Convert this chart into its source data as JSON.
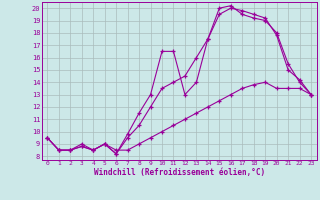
{
  "bg_color": "#cce8e8",
  "line_color": "#990099",
  "grid_color": "#aabcbc",
  "xlabel": "Windchill (Refroidissement éolien,°C)",
  "xlim_min": -0.5,
  "xlim_max": 23.5,
  "ylim_min": 7.7,
  "ylim_max": 20.5,
  "xticks": [
    0,
    1,
    2,
    3,
    4,
    5,
    6,
    7,
    8,
    9,
    10,
    11,
    12,
    13,
    14,
    15,
    16,
    17,
    18,
    19,
    20,
    21,
    22,
    23
  ],
  "yticks": [
    8,
    9,
    10,
    11,
    12,
    13,
    14,
    15,
    16,
    17,
    18,
    19,
    20
  ],
  "line1_x": [
    0,
    1,
    2,
    3,
    4,
    5,
    6,
    7,
    8,
    9,
    10,
    11,
    12,
    13,
    14,
    15,
    16,
    17,
    18,
    19,
    20,
    21,
    22,
    23
  ],
  "line1_y": [
    9.5,
    8.5,
    8.5,
    9.0,
    8.5,
    9.0,
    8.5,
    8.5,
    9.0,
    9.5,
    10.0,
    10.5,
    11.0,
    11.5,
    12.0,
    12.5,
    13.0,
    13.5,
    13.8,
    14.0,
    13.5,
    13.5,
    13.5,
    13.0
  ],
  "line2_x": [
    0,
    1,
    2,
    3,
    4,
    5,
    6,
    7,
    8,
    9,
    10,
    11,
    12,
    13,
    14,
    15,
    16,
    17,
    18,
    19,
    20,
    21,
    22,
    23
  ],
  "line2_y": [
    9.5,
    8.5,
    8.5,
    8.8,
    8.5,
    9.0,
    8.2,
    9.5,
    10.5,
    12.0,
    13.5,
    14.0,
    14.5,
    16.0,
    17.5,
    19.5,
    20.0,
    19.8,
    19.5,
    19.2,
    17.8,
    15.0,
    14.2,
    13.0
  ],
  "line3_x": [
    0,
    1,
    2,
    3,
    4,
    5,
    6,
    7,
    8,
    9,
    10,
    11,
    12,
    13,
    14,
    15,
    16,
    17,
    18,
    19,
    20,
    21,
    22,
    23
  ],
  "line3_y": [
    9.5,
    8.5,
    8.5,
    8.8,
    8.5,
    9.0,
    8.2,
    9.8,
    11.5,
    13.0,
    16.5,
    16.5,
    13.0,
    14.0,
    17.5,
    20.0,
    20.2,
    19.5,
    19.2,
    19.0,
    18.0,
    15.5,
    14.0,
    13.0
  ]
}
